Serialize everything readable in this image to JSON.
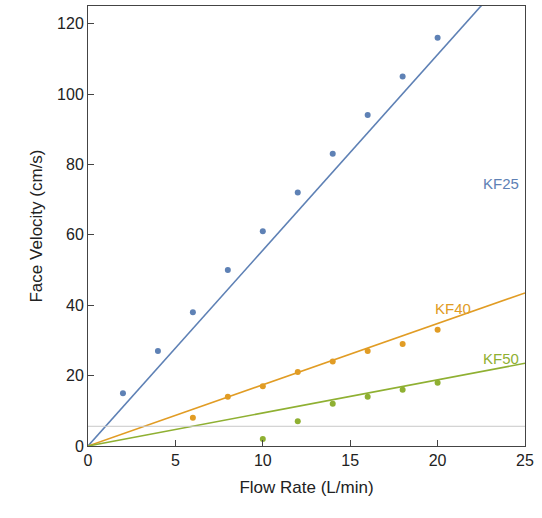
{
  "chart_data": {
    "type": "scatter",
    "x_label": "Flow Rate (L/min)",
    "y_label": "Face Velocity (cm/s)",
    "xlim": [
      0,
      25
    ],
    "xticks": [
      0,
      5,
      10,
      15,
      20,
      25
    ],
    "ylim": [
      0,
      125
    ],
    "yticks": [
      0,
      20,
      40,
      60,
      80,
      100,
      120
    ],
    "grid": false,
    "reference_line": {
      "y": 5.6,
      "color": "#c8c8c8"
    },
    "series": [
      {
        "name": "KF25",
        "color": "#5e81b5",
        "x": [
          2,
          4,
          6,
          8,
          10,
          12,
          14,
          16,
          18,
          20
        ],
        "values": [
          15,
          27,
          38,
          50,
          61,
          72,
          83,
          94,
          105,
          116
        ],
        "fit": {
          "x": [
            0,
            25
          ],
          "values": [
            0,
            139
          ]
        },
        "label_x": 23.6,
        "label_y": 74.5
      },
      {
        "name": "KF40",
        "color": "#e19c24",
        "x": [
          6,
          8,
          10,
          12,
          14,
          16,
          18,
          20
        ],
        "values": [
          8,
          14,
          17,
          21,
          24,
          27,
          29,
          33
        ],
        "fit": {
          "x": [
            0,
            25
          ],
          "values": [
            0,
            43.5
          ]
        },
        "label_x": 20.9,
        "label_y": 39
      },
      {
        "name": "KF50",
        "color": "#8fb032",
        "x": [
          10,
          12,
          14,
          16,
          18,
          20
        ],
        "values": [
          2,
          7,
          12,
          14,
          16,
          18
        ],
        "fit": {
          "x": [
            0,
            25
          ],
          "values": [
            0,
            23.5
          ]
        },
        "label_x": 23.6,
        "label_y": 25
      }
    ]
  }
}
